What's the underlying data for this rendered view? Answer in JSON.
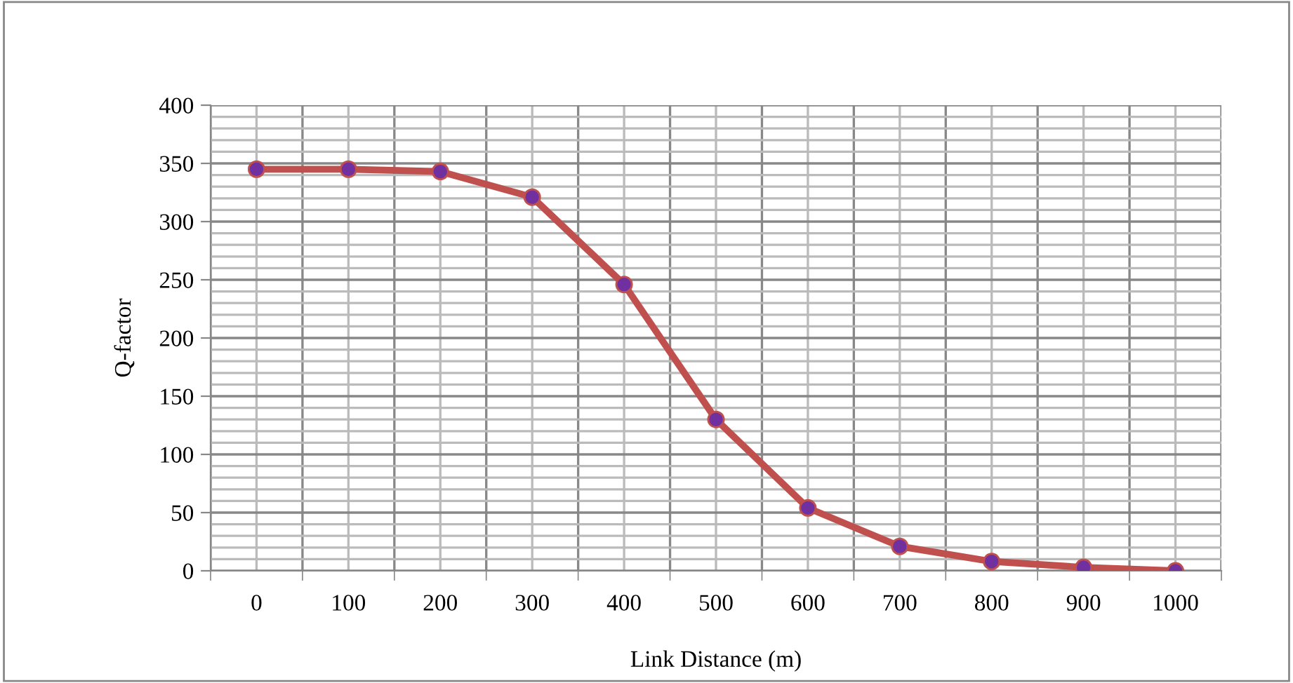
{
  "chart_data": {
    "type": "line",
    "xlabel": "Link Distance (m)",
    "ylabel": "Q-factor",
    "categories": [
      "0",
      "100",
      "200",
      "300",
      "400",
      "500",
      "600",
      "700",
      "800",
      "900",
      "1000"
    ],
    "series": [
      {
        "color": "#c0504d",
        "values": [
          345,
          345,
          343,
          321,
          246,
          130,
          54,
          21,
          8,
          3,
          0
        ]
      }
    ],
    "ylim": [
      0,
      400
    ],
    "yticks": [
      0,
      50,
      100,
      150,
      200,
      250,
      300,
      350,
      400
    ],
    "grid": true,
    "legend": false,
    "marker": "circle",
    "line_style": "solid"
  }
}
